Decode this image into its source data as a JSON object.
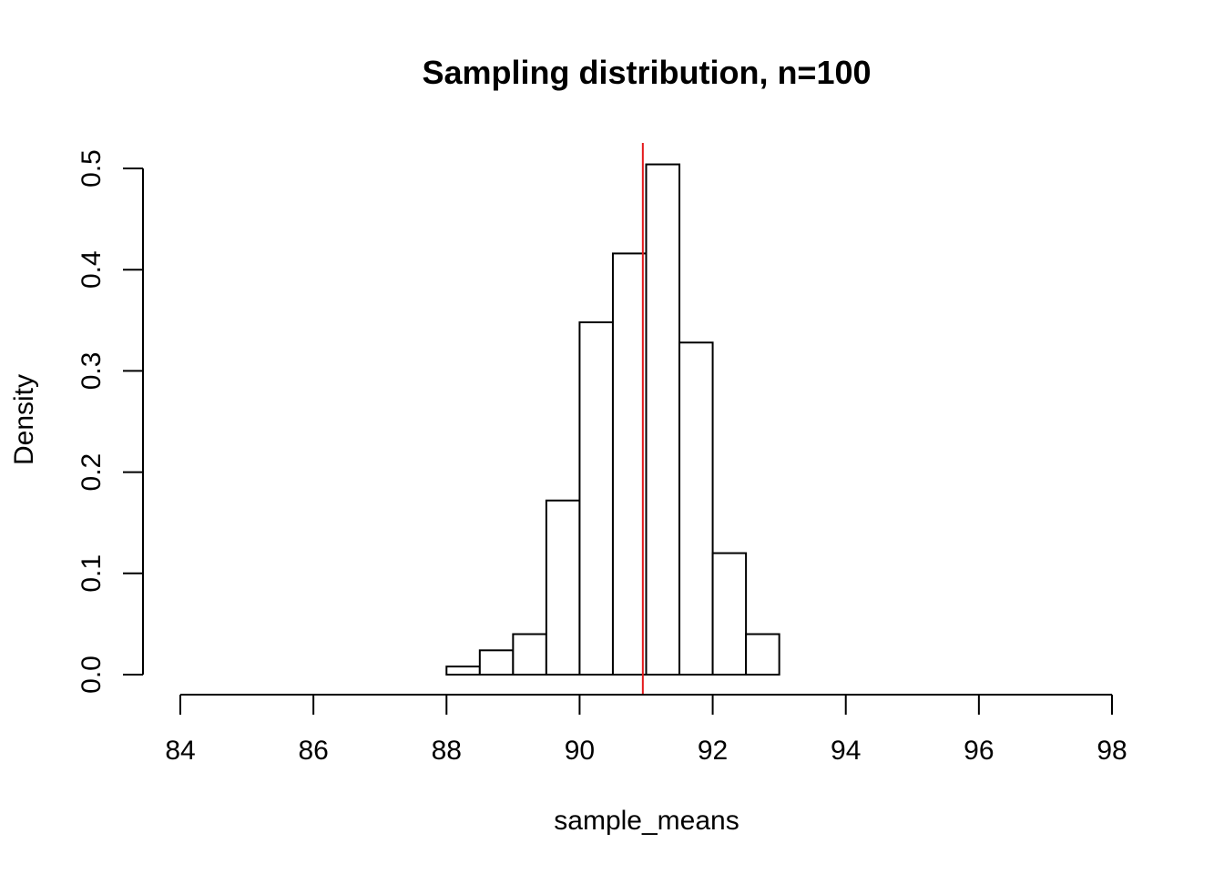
{
  "chart_data": {
    "type": "bar",
    "title": "Sampling distribution, n=100",
    "xlabel": "sample_means",
    "ylabel": "Density",
    "xlim": [
      84,
      98
    ],
    "ylim": [
      0,
      0.5
    ],
    "xticks": [
      84,
      86,
      88,
      90,
      92,
      94,
      96,
      98
    ],
    "yticks": [
      "0.0",
      "0.1",
      "0.2",
      "0.3",
      "0.4",
      "0.5"
    ],
    "bins": [
      {
        "start": 88.0,
        "end": 88.5,
        "density": 0.008
      },
      {
        "start": 88.5,
        "end": 89.0,
        "density": 0.024
      },
      {
        "start": 89.0,
        "end": 89.5,
        "density": 0.04
      },
      {
        "start": 89.5,
        "end": 90.0,
        "density": 0.172
      },
      {
        "start": 90.0,
        "end": 90.5,
        "density": 0.348
      },
      {
        "start": 90.5,
        "end": 91.0,
        "density": 0.416
      },
      {
        "start": 91.0,
        "end": 91.5,
        "density": 0.504
      },
      {
        "start": 91.5,
        "end": 92.0,
        "density": 0.328
      },
      {
        "start": 92.0,
        "end": 92.5,
        "density": 0.12
      },
      {
        "start": 92.5,
        "end": 93.0,
        "density": 0.04
      }
    ],
    "reference_line": {
      "x": 90.95,
      "color": "#e41a1c"
    },
    "grid": false
  }
}
